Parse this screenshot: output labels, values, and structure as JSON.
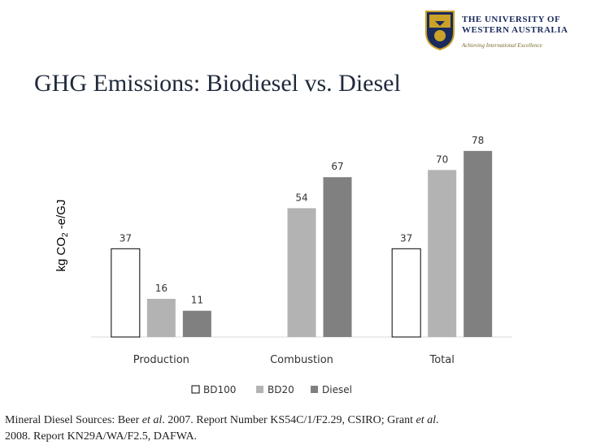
{
  "header": {
    "university_name_line1": "THE UNIVERSITY OF",
    "university_name_line2": "WESTERN AUSTRALIA",
    "tagline": "Achieving International Excellence"
  },
  "slide": {
    "title": "GHG Emissions: Biodiesel vs. Diesel"
  },
  "chart_data": {
    "type": "bar",
    "categories": [
      "Production",
      "Combustion",
      "Total"
    ],
    "series": [
      {
        "name": "BD100",
        "values": [
          37,
          null,
          37
        ],
        "color": "#ffffff",
        "stroke": "#000000"
      },
      {
        "name": "BD20",
        "values": [
          16,
          54,
          70
        ],
        "color": "#b3b3b3"
      },
      {
        "name": "Diesel",
        "values": [
          11,
          67,
          78
        ],
        "color": "#808080"
      }
    ],
    "ylabel": "kg CO2 -e/GJ",
    "ylim": [
      0,
      80
    ],
    "grid": false,
    "legend": "bottom"
  },
  "footer": {
    "line1_a": "Mineral Diesel Sources: Beer ",
    "line1_b": "et al",
    "line1_c": ". 2007. Report Number KS54C/1/F2.29, CSIRO; Grant ",
    "line1_d": "et al",
    "line1_e": ".",
    "line2": "2008. Report KN29A/WA/F2.5, DAFWA."
  }
}
